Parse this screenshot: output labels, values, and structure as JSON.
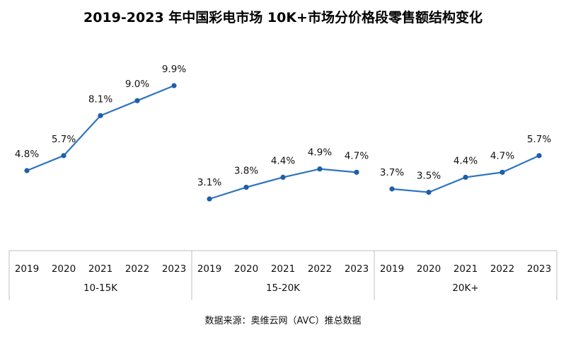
{
  "title": "2019-2023 年中国彩电市场 10K+市场分价格段零售额结构变化",
  "source": "数据来源：奥维云网（AVC）推总数据",
  "colors": {
    "line": "#2e74c0",
    "point": "#1f5fa8",
    "axis": "#bfbfbf",
    "label": "#111111"
  },
  "chart_data": [
    {
      "type": "line",
      "group": "10-15K",
      "categories": [
        "2019",
        "2020",
        "2021",
        "2022",
        "2023"
      ],
      "values": [
        4.8,
        5.7,
        8.1,
        9.0,
        9.9
      ],
      "labels": [
        "4.8%",
        "5.7%",
        "8.1%",
        "9.0%",
        "9.9%"
      ]
    },
    {
      "type": "line",
      "group": "15-20K",
      "categories": [
        "2019",
        "2020",
        "2021",
        "2022",
        "2023"
      ],
      "values": [
        3.1,
        3.8,
        4.4,
        4.9,
        4.7
      ],
      "labels": [
        "3.1%",
        "3.8%",
        "4.4%",
        "4.9%",
        "4.7%"
      ]
    },
    {
      "type": "line",
      "group": "20K+",
      "categories": [
        "2019",
        "2020",
        "2021",
        "2022",
        "2023"
      ],
      "values": [
        3.7,
        3.5,
        4.4,
        4.7,
        5.7
      ],
      "labels": [
        "3.7%",
        "3.5%",
        "4.4%",
        "4.7%",
        "5.7%"
      ]
    }
  ]
}
